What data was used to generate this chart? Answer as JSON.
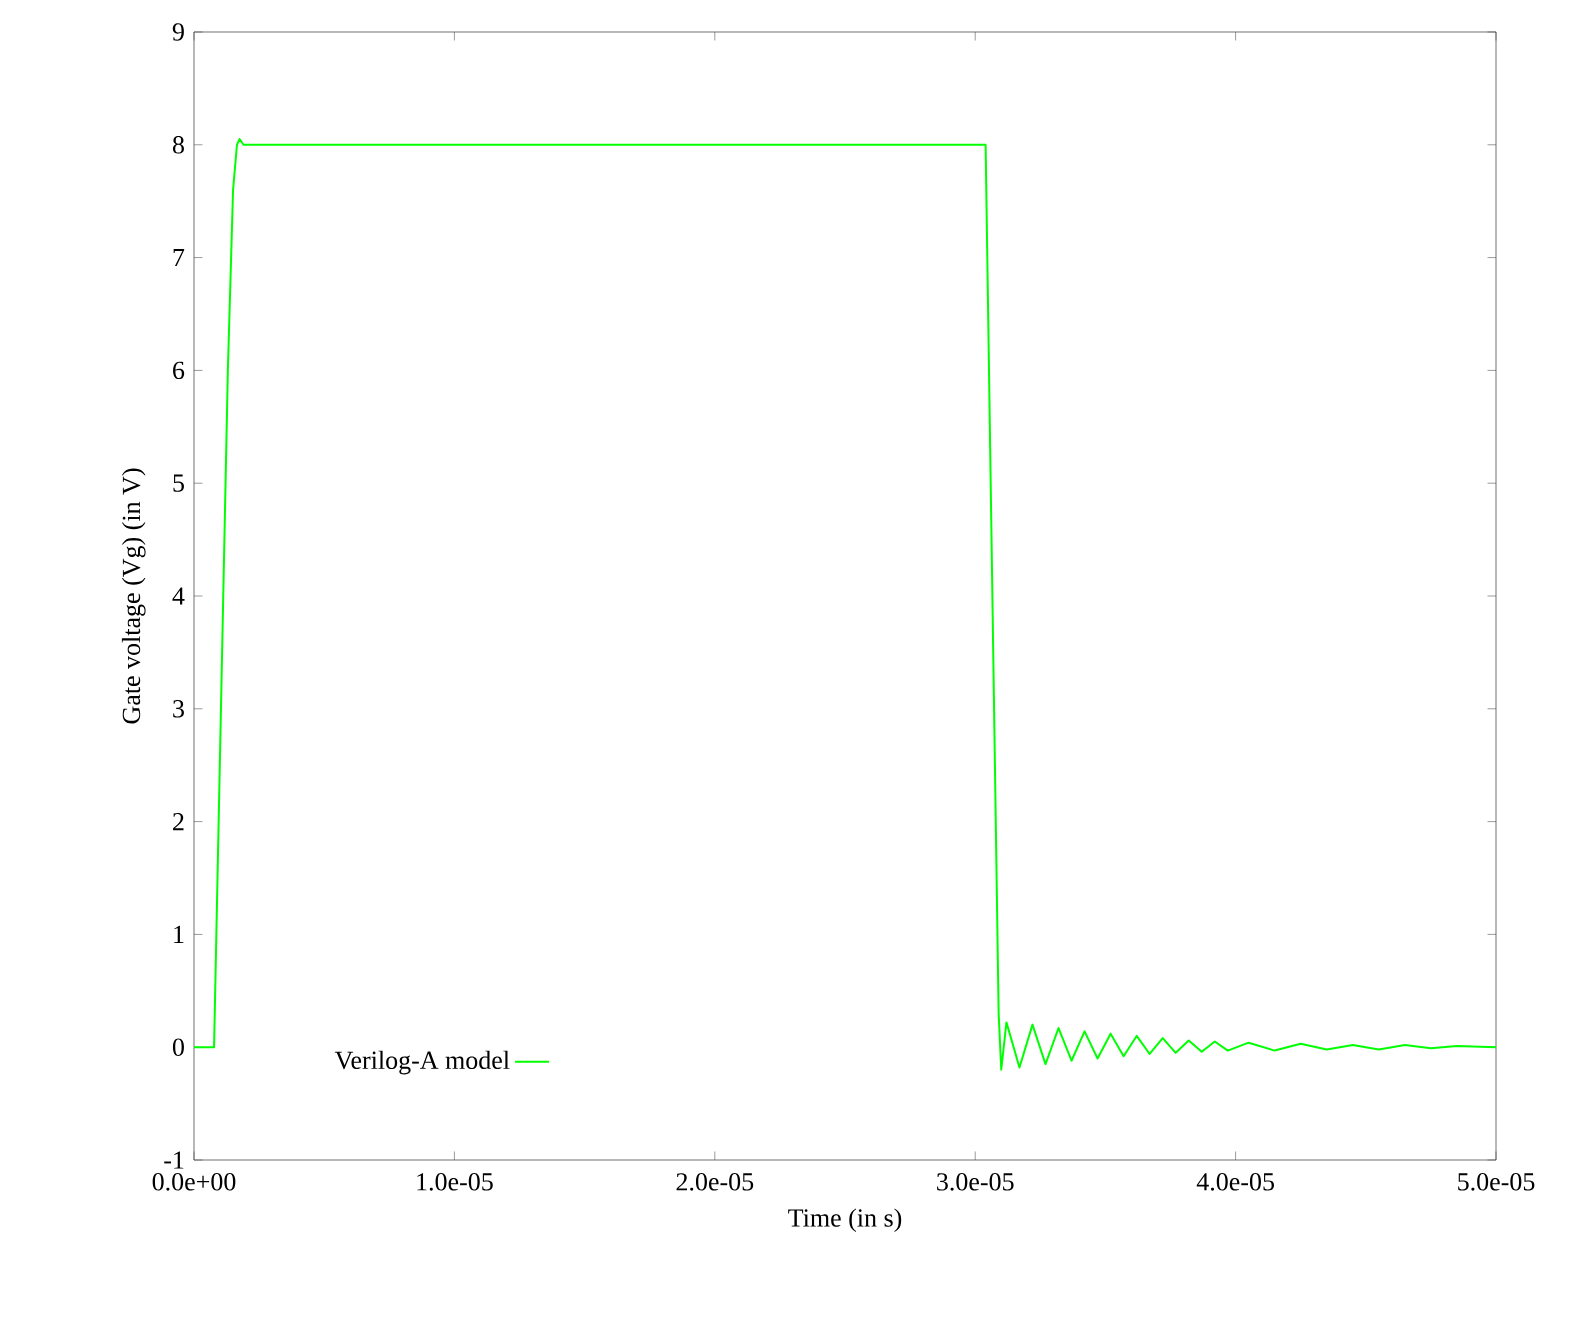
{
  "chart_data": {
    "type": "line",
    "xlabel": "Time (in s)",
    "ylabel": "Gate voltage (Vg) (in V)",
    "xlim": [
      0,
      5e-05
    ],
    "ylim": [
      -1,
      9
    ],
    "xticks": [
      {
        "value": 0,
        "label": "0.0e+00"
      },
      {
        "value": 1e-05,
        "label": "1.0e-05"
      },
      {
        "value": 2e-05,
        "label": "2.0e-05"
      },
      {
        "value": 3e-05,
        "label": "3.0e-05"
      },
      {
        "value": 4e-05,
        "label": "4.0e-05"
      },
      {
        "value": 5e-05,
        "label": "5.0e-05"
      }
    ],
    "yticks": [
      -1,
      0,
      1,
      2,
      3,
      4,
      5,
      6,
      7,
      8,
      9
    ],
    "legend": "bottom left",
    "marker": "none",
    "line_style": "solid",
    "series": [
      {
        "name": "Verilog-A model",
        "color": "#00ff00",
        "x": [
          0,
          7.7e-07,
          1.3e-06,
          1.5e-06,
          1.65e-06,
          1.75e-06,
          1.9e-06,
          3.04e-05,
          3.09e-05,
          3.1e-05,
          3.12e-05,
          3.17e-05,
          3.22e-05,
          3.27e-05,
          3.32e-05,
          3.37e-05,
          3.42e-05,
          3.47e-05,
          3.52e-05,
          3.57e-05,
          3.62e-05,
          3.67e-05,
          3.72e-05,
          3.77e-05,
          3.82e-05,
          3.87e-05,
          3.92e-05,
          3.97e-05,
          4.05e-05,
          4.15e-05,
          4.25e-05,
          4.35e-05,
          4.45e-05,
          4.55e-05,
          4.65e-05,
          4.75e-05,
          4.85e-05,
          5e-05
        ],
        "values": [
          0,
          0,
          6.0,
          7.6,
          8.0,
          8.05,
          8.0,
          8.0,
          0.3,
          -0.2,
          0.22,
          -0.18,
          0.2,
          -0.15,
          0.17,
          -0.12,
          0.14,
          -0.1,
          0.12,
          -0.08,
          0.1,
          -0.06,
          0.08,
          -0.05,
          0.06,
          -0.04,
          0.05,
          -0.03,
          0.04,
          -0.03,
          0.03,
          -0.02,
          0.02,
          -0.02,
          0.02,
          -0.01,
          0.01,
          0
        ]
      }
    ]
  }
}
